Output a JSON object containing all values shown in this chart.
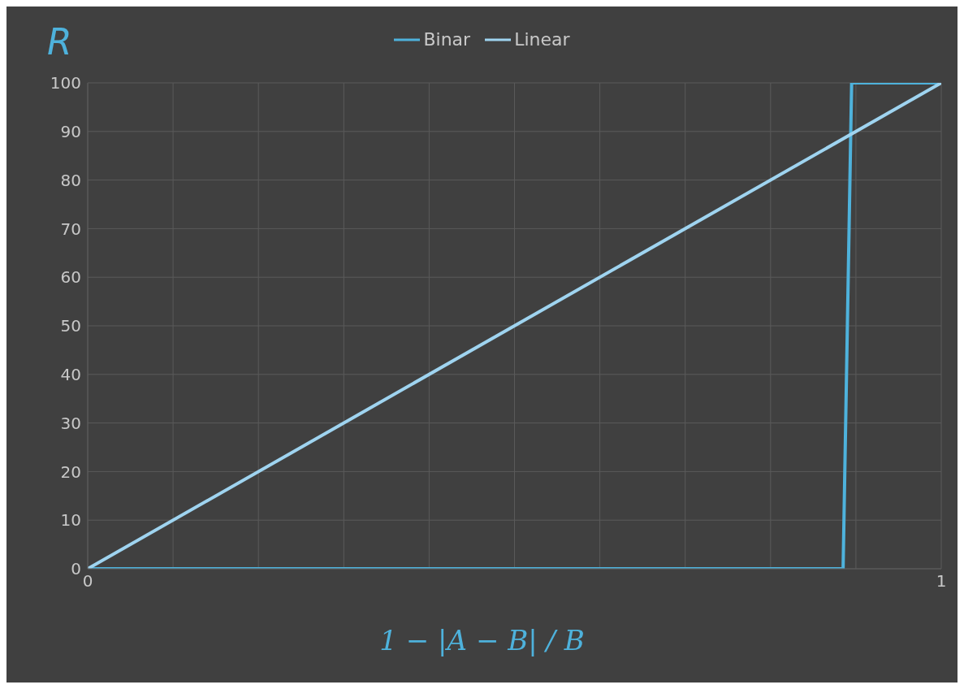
{
  "chart_data": {
    "type": "line",
    "ylabel": "R",
    "xlabel": "1 − |A − B| / B",
    "series": [
      {
        "name": "Binar",
        "color": "#4eb2dc",
        "x": [
          0,
          0.885,
          0.895,
          1
        ],
        "values": [
          0,
          0,
          100,
          100
        ]
      },
      {
        "name": "Linear",
        "color": "#9fd4f0",
        "x": [
          0,
          1
        ],
        "values": [
          0,
          100
        ]
      }
    ],
    "xlim": [
      0,
      1
    ],
    "xticks": [
      0,
      {
        "value": 0.1,
        "label": null
      },
      {
        "value": 0.2,
        "label": null
      },
      {
        "value": 0.3,
        "label": null
      },
      {
        "value": 0.4,
        "label": null
      },
      {
        "value": 0.5,
        "label": null
      },
      {
        "value": 0.6,
        "label": null
      },
      {
        "value": 0.7,
        "label": null
      },
      {
        "value": 0.8,
        "label": null
      },
      {
        "value": 0.9,
        "label": null
      },
      1
    ],
    "ylim": [
      0,
      100
    ],
    "yticks": [
      0,
      10,
      20,
      30,
      40,
      50,
      60,
      70,
      80,
      90,
      100
    ],
    "grid": true,
    "legend": "top",
    "marker": "none",
    "line_style": "solid"
  }
}
